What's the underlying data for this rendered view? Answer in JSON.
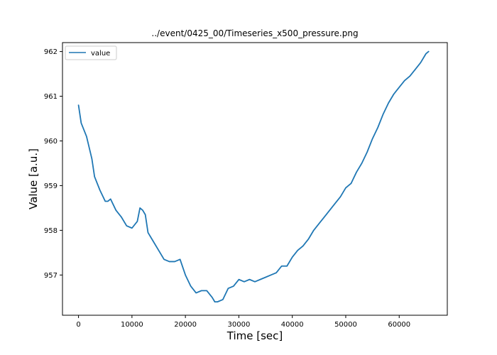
{
  "chart_data": {
    "type": "line",
    "title": "../event/0425_00/Timeseries_x500_pressure.png",
    "xlabel": "Time [sec]",
    "ylabel": "Value [a.u.]",
    "xlim": [
      -3000,
      69000
    ],
    "ylim": [
      956.1,
      962.2
    ],
    "xticks": [
      0,
      10000,
      20000,
      30000,
      40000,
      50000,
      60000
    ],
    "xtick_labels": [
      "0",
      "10000",
      "20000",
      "30000",
      "40000",
      "50000",
      "60000"
    ],
    "yticks": [
      957,
      958,
      959,
      960,
      961,
      962
    ],
    "ytick_labels": [
      "957",
      "958",
      "959",
      "960",
      "961",
      "962"
    ],
    "grid": false,
    "legend": {
      "position": "top-left"
    },
    "colors": {
      "series": "#1f77b4"
    },
    "series": [
      {
        "name": "value",
        "x": [
          0,
          500,
          1500,
          2500,
          3000,
          4000,
          5000,
          5500,
          6000,
          7000,
          8000,
          9000,
          10000,
          11000,
          11500,
          12000,
          12500,
          13000,
          14000,
          15000,
          16000,
          17000,
          18000,
          19000,
          20000,
          21000,
          22000,
          23000,
          24000,
          25000,
          25500,
          26000,
          27000,
          28000,
          29000,
          30000,
          31000,
          32000,
          33000,
          34000,
          35000,
          36000,
          37000,
          38000,
          39000,
          40000,
          41000,
          42000,
          43000,
          44000,
          45000,
          46000,
          47000,
          48000,
          49000,
          50000,
          51000,
          52000,
          53000,
          54000,
          55000,
          56000,
          57000,
          58000,
          59000,
          60000,
          61000,
          62000,
          63000,
          64000,
          65000,
          65500
        ],
        "y": [
          960.8,
          960.4,
          960.1,
          959.6,
          959.2,
          958.9,
          958.65,
          958.65,
          958.7,
          958.45,
          958.3,
          958.1,
          958.05,
          958.2,
          958.5,
          958.45,
          958.35,
          957.95,
          957.75,
          957.55,
          957.35,
          957.3,
          957.3,
          957.35,
          957.0,
          956.75,
          956.6,
          956.65,
          956.65,
          956.5,
          956.4,
          956.4,
          956.45,
          956.7,
          956.75,
          956.9,
          956.85,
          956.9,
          956.85,
          956.9,
          956.95,
          957.0,
          957.05,
          957.2,
          957.2,
          957.4,
          957.55,
          957.65,
          957.8,
          958.0,
          958.15,
          958.3,
          958.45,
          958.6,
          958.75,
          958.95,
          959.05,
          959.3,
          959.5,
          959.75,
          960.05,
          960.3,
          960.6,
          960.85,
          961.05,
          961.2,
          961.35,
          961.45,
          961.6,
          961.75,
          961.95,
          962.0
        ]
      }
    ]
  }
}
